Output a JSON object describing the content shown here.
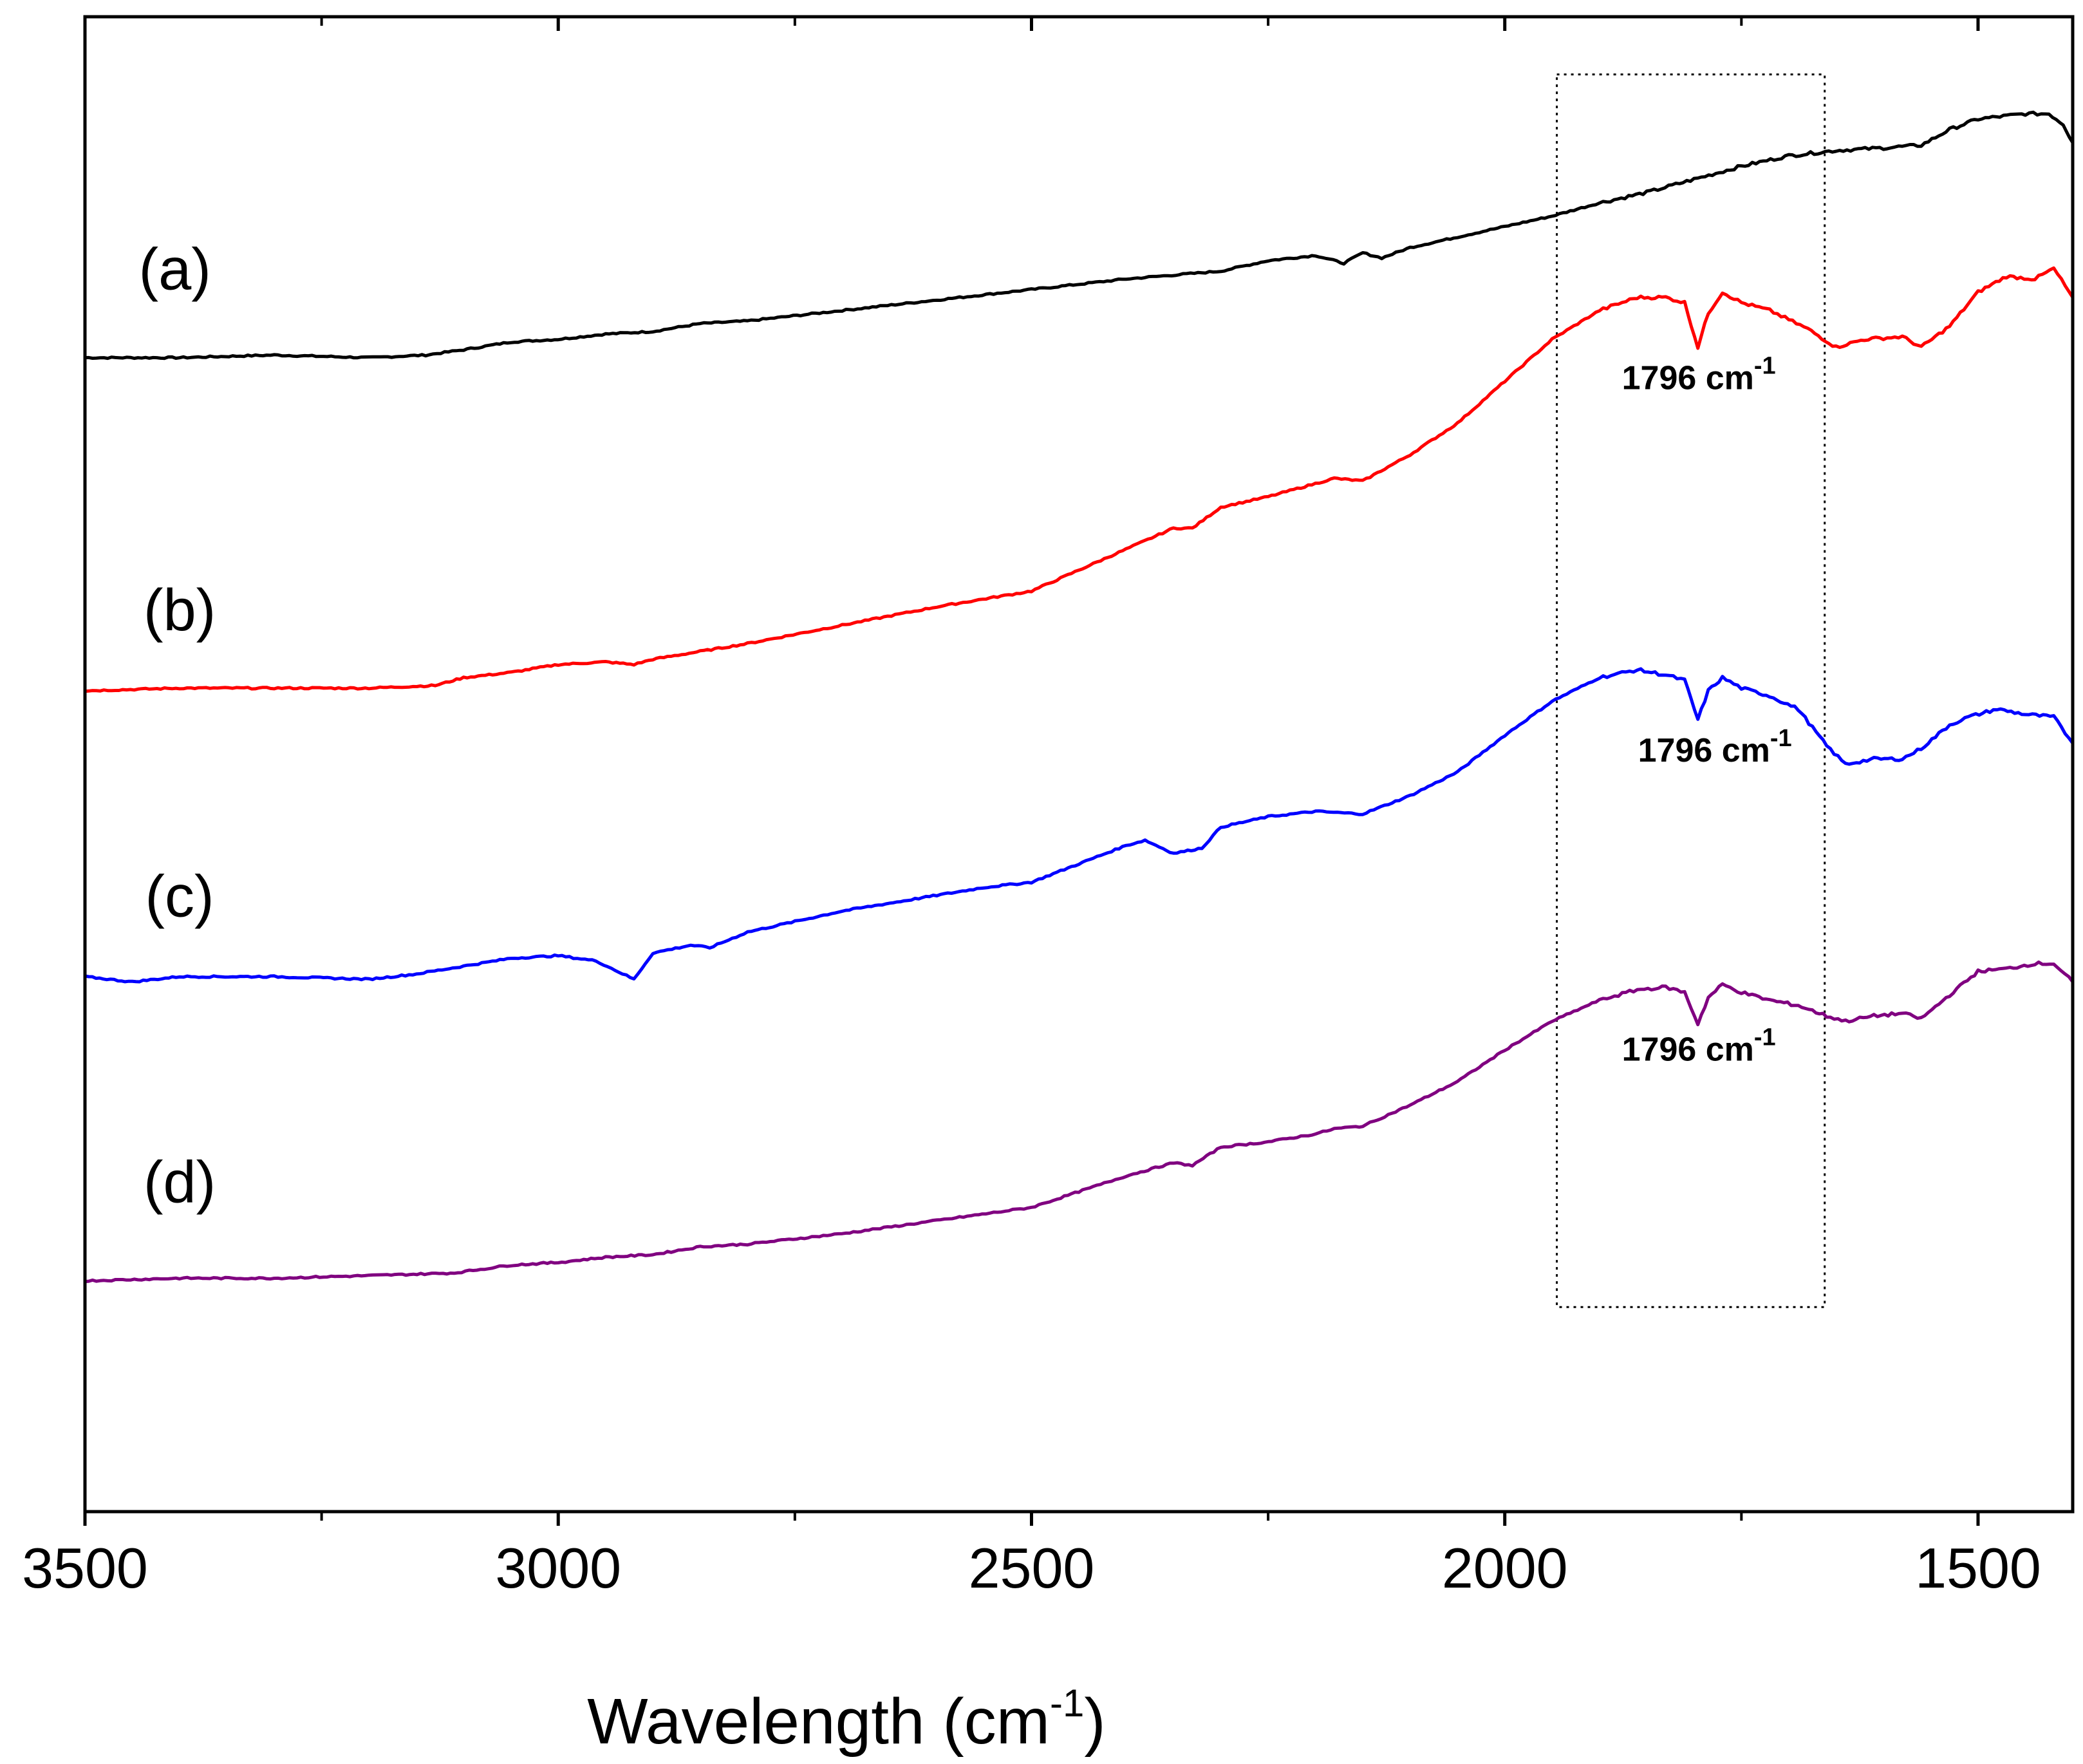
{
  "chart_data": {
    "type": "line",
    "title": "",
    "xlabel": "Wavelength (cm",
    "xlabel_superscript": "-1",
    "xlabel_suffix": ")",
    "ylabel": "",
    "xlim": [
      3500,
      1400
    ],
    "x_reversed": true,
    "ylim": [
      -0.2,
      5.5
    ],
    "y_ticks_shown": false,
    "grid": false,
    "legend": "none",
    "x_ticks": [
      {
        "value": 3500,
        "label": "3500"
      },
      {
        "value": 3000,
        "label": "3000"
      },
      {
        "value": 2500,
        "label": "2500"
      },
      {
        "value": 2000,
        "label": "2000"
      },
      {
        "value": 1500,
        "label": "1500"
      }
    ],
    "x_minor_ticks": [
      3250,
      2750,
      2250,
      1750
    ],
    "highlight_box": {
      "x_range": [
        1945,
        1662
      ],
      "y_range": [
        0.58,
        5.28
      ],
      "style": "dotted"
    },
    "series": [
      {
        "name": "(a)",
        "color": "#000000",
        "label_anchor": {
          "x": 3405,
          "y": 4.46
        },
        "points": [
          [
            3500,
            4.2
          ],
          [
            3400,
            4.2
          ],
          [
            3300,
            4.21
          ],
          [
            3200,
            4.2
          ],
          [
            3140,
            4.21
          ],
          [
            3100,
            4.23
          ],
          [
            3050,
            4.26
          ],
          [
            3000,
            4.27
          ],
          [
            2950,
            4.29
          ],
          [
            2900,
            4.3
          ],
          [
            2850,
            4.33
          ],
          [
            2800,
            4.34
          ],
          [
            2700,
            4.38
          ],
          [
            2600,
            4.42
          ],
          [
            2500,
            4.46
          ],
          [
            2400,
            4.5
          ],
          [
            2300,
            4.53
          ],
          [
            2250,
            4.57
          ],
          [
            2200,
            4.59
          ],
          [
            2170,
            4.56
          ],
          [
            2150,
            4.6
          ],
          [
            2130,
            4.58
          ],
          [
            2100,
            4.62
          ],
          [
            2050,
            4.66
          ],
          [
            2000,
            4.7
          ],
          [
            1950,
            4.74
          ],
          [
            1900,
            4.79
          ],
          [
            1850,
            4.83
          ],
          [
            1800,
            4.88
          ],
          [
            1750,
            4.93
          ],
          [
            1700,
            4.97
          ],
          [
            1650,
            4.99
          ],
          [
            1600,
            5.0
          ],
          [
            1560,
            5.01
          ],
          [
            1530,
            5.07
          ],
          [
            1500,
            5.11
          ],
          [
            1450,
            5.13
          ],
          [
            1425,
            5.13
          ],
          [
            1410,
            5.09
          ],
          [
            1400,
            5.02
          ]
        ]
      },
      {
        "name": "(b)",
        "color": "#ff0000",
        "label_anchor": {
          "x": 3400,
          "y": 3.16
        },
        "points": [
          [
            3500,
            2.93
          ],
          [
            3400,
            2.94
          ],
          [
            3300,
            2.94
          ],
          [
            3200,
            2.94
          ],
          [
            3130,
            2.95
          ],
          [
            3100,
            2.98
          ],
          [
            3050,
            3.0
          ],
          [
            3000,
            3.03
          ],
          [
            2950,
            3.04
          ],
          [
            2920,
            3.03
          ],
          [
            2900,
            3.05
          ],
          [
            2850,
            3.08
          ],
          [
            2800,
            3.11
          ],
          [
            2700,
            3.18
          ],
          [
            2600,
            3.25
          ],
          [
            2500,
            3.31
          ],
          [
            2450,
            3.39
          ],
          [
            2400,
            3.47
          ],
          [
            2350,
            3.55
          ],
          [
            2330,
            3.55
          ],
          [
            2300,
            3.63
          ],
          [
            2250,
            3.67
          ],
          [
            2200,
            3.72
          ],
          [
            2180,
            3.74
          ],
          [
            2150,
            3.73
          ],
          [
            2100,
            3.83
          ],
          [
            2050,
            3.95
          ],
          [
            2000,
            4.11
          ],
          [
            1950,
            4.27
          ],
          [
            1900,
            4.38
          ],
          [
            1860,
            4.43
          ],
          [
            1830,
            4.43
          ],
          [
            1810,
            4.41
          ],
          [
            1796,
            4.24
          ],
          [
            1785,
            4.37
          ],
          [
            1770,
            4.45
          ],
          [
            1750,
            4.41
          ],
          [
            1720,
            4.38
          ],
          [
            1680,
            4.31
          ],
          [
            1650,
            4.24
          ],
          [
            1620,
            4.27
          ],
          [
            1580,
            4.28
          ],
          [
            1560,
            4.24
          ],
          [
            1530,
            4.32
          ],
          [
            1500,
            4.45
          ],
          [
            1470,
            4.51
          ],
          [
            1440,
            4.5
          ],
          [
            1420,
            4.54
          ],
          [
            1400,
            4.43
          ]
        ]
      },
      {
        "name": "(c)",
        "color": "#0000ff",
        "label_anchor": {
          "x": 3400,
          "y": 2.07
        },
        "points": [
          [
            3500,
            1.84
          ],
          [
            3450,
            1.82
          ],
          [
            3400,
            1.84
          ],
          [
            3300,
            1.84
          ],
          [
            3200,
            1.83
          ],
          [
            3150,
            1.85
          ],
          [
            3100,
            1.88
          ],
          [
            3050,
            1.91
          ],
          [
            3000,
            1.92
          ],
          [
            2960,
            1.9
          ],
          [
            2920,
            1.83
          ],
          [
            2900,
            1.93
          ],
          [
            2860,
            1.96
          ],
          [
            2840,
            1.95
          ],
          [
            2800,
            2.01
          ],
          [
            2750,
            2.05
          ],
          [
            2700,
            2.09
          ],
          [
            2650,
            2.12
          ],
          [
            2600,
            2.15
          ],
          [
            2550,
            2.18
          ],
          [
            2500,
            2.2
          ],
          [
            2450,
            2.27
          ],
          [
            2400,
            2.34
          ],
          [
            2380,
            2.36
          ],
          [
            2350,
            2.31
          ],
          [
            2320,
            2.33
          ],
          [
            2300,
            2.41
          ],
          [
            2250,
            2.45
          ],
          [
            2200,
            2.47
          ],
          [
            2150,
            2.46
          ],
          [
            2100,
            2.53
          ],
          [
            2050,
            2.62
          ],
          [
            2000,
            2.76
          ],
          [
            1950,
            2.89
          ],
          [
            1900,
            2.98
          ],
          [
            1860,
            3.01
          ],
          [
            1830,
            2.99
          ],
          [
            1810,
            2.97
          ],
          [
            1796,
            2.82
          ],
          [
            1785,
            2.93
          ],
          [
            1770,
            2.98
          ],
          [
            1750,
            2.94
          ],
          [
            1720,
            2.91
          ],
          [
            1690,
            2.86
          ],
          [
            1660,
            2.72
          ],
          [
            1640,
            2.65
          ],
          [
            1610,
            2.67
          ],
          [
            1580,
            2.67
          ],
          [
            1560,
            2.71
          ],
          [
            1530,
            2.8
          ],
          [
            1510,
            2.83
          ],
          [
            1480,
            2.86
          ],
          [
            1450,
            2.84
          ],
          [
            1420,
            2.83
          ],
          [
            1400,
            2.73
          ]
        ]
      },
      {
        "name": "(d)",
        "color": "#800080",
        "label_anchor": {
          "x": 3400,
          "y": 0.98
        },
        "points": [
          [
            3500,
            0.68
          ],
          [
            3400,
            0.69
          ],
          [
            3300,
            0.69
          ],
          [
            3200,
            0.7
          ],
          [
            3110,
            0.71
          ],
          [
            3050,
            0.74
          ],
          [
            3000,
            0.75
          ],
          [
            2950,
            0.77
          ],
          [
            2900,
            0.78
          ],
          [
            2850,
            0.81
          ],
          [
            2800,
            0.82
          ],
          [
            2700,
            0.86
          ],
          [
            2600,
            0.91
          ],
          [
            2500,
            0.96
          ],
          [
            2450,
            1.02
          ],
          [
            2400,
            1.08
          ],
          [
            2350,
            1.13
          ],
          [
            2330,
            1.12
          ],
          [
            2300,
            1.19
          ],
          [
            2250,
            1.21
          ],
          [
            2200,
            1.24
          ],
          [
            2180,
            1.26
          ],
          [
            2150,
            1.27
          ],
          [
            2100,
            1.35
          ],
          [
            2050,
            1.44
          ],
          [
            2000,
            1.56
          ],
          [
            1950,
            1.67
          ],
          [
            1900,
            1.75
          ],
          [
            1860,
            1.79
          ],
          [
            1830,
            1.8
          ],
          [
            1810,
            1.78
          ],
          [
            1796,
            1.66
          ],
          [
            1785,
            1.76
          ],
          [
            1770,
            1.81
          ],
          [
            1750,
            1.78
          ],
          [
            1720,
            1.75
          ],
          [
            1690,
            1.73
          ],
          [
            1660,
            1.69
          ],
          [
            1640,
            1.67
          ],
          [
            1610,
            1.69
          ],
          [
            1580,
            1.7
          ],
          [
            1560,
            1.68
          ],
          [
            1530,
            1.77
          ],
          [
            1500,
            1.86
          ],
          [
            1470,
            1.87
          ],
          [
            1440,
            1.89
          ],
          [
            1420,
            1.89
          ],
          [
            1400,
            1.82
          ]
        ]
      }
    ],
    "annotations": [
      {
        "text": "1796 cm",
        "superscript": "-1",
        "x": 1795,
        "y": 4.08
      },
      {
        "text": "1796 cm",
        "superscript": "-1",
        "x": 1778,
        "y": 2.66
      },
      {
        "text": "1796 cm",
        "superscript": "-1",
        "x": 1795,
        "y": 1.52
      }
    ]
  }
}
